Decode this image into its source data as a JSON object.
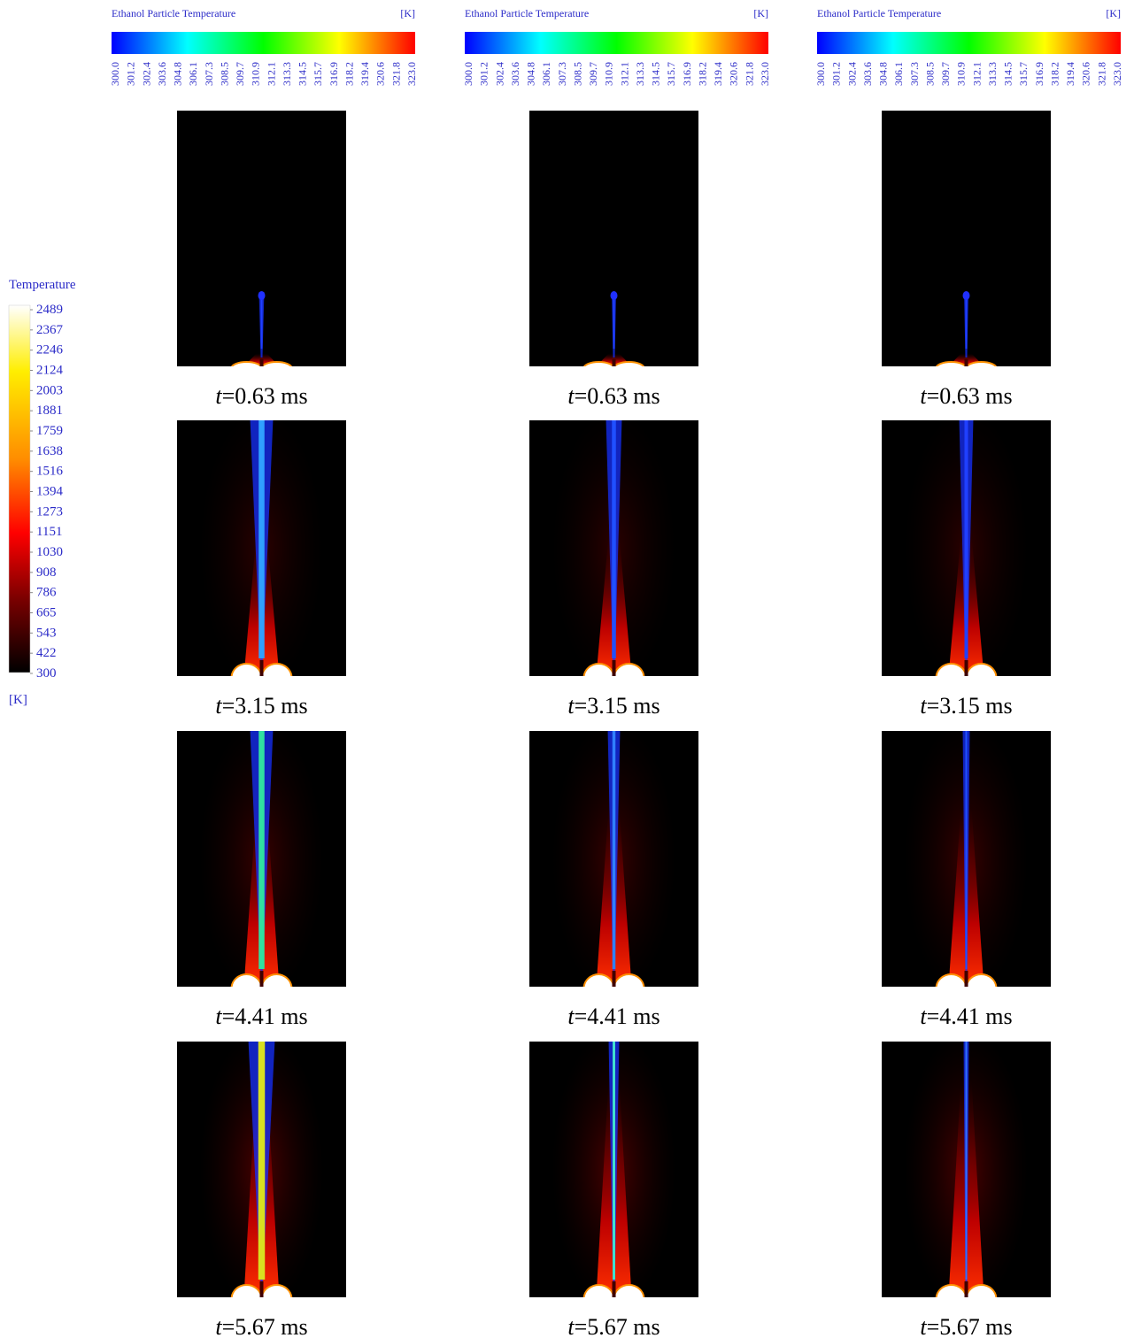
{
  "particle_colorbars": [
    {
      "title": "Ethanol Particle Temperature",
      "unit": "[K]",
      "ticks": [
        "300.0",
        "301.2",
        "302.4",
        "303.6",
        "304.8",
        "306.1",
        "307.3",
        "308.5",
        "309.7",
        "310.9",
        "312.1",
        "313.3",
        "314.5",
        "315.7",
        "316.9",
        "318.2",
        "319.4",
        "320.6",
        "321.8",
        "323.0"
      ]
    },
    {
      "title": "Ethanol Particle Temperature",
      "unit": "[K]",
      "ticks": [
        "300.0",
        "301.2",
        "302.4",
        "303.6",
        "304.8",
        "306.1",
        "307.3",
        "308.5",
        "309.7",
        "310.9",
        "312.1",
        "313.3",
        "314.5",
        "315.7",
        "316.9",
        "318.2",
        "319.4",
        "320.6",
        "321.8",
        "323.0"
      ]
    },
    {
      "title": "Ethanol Particle Temperature",
      "unit": "[K]",
      "ticks": [
        "300.0",
        "301.2",
        "302.4",
        "303.6",
        "304.8",
        "306.1",
        "307.3",
        "308.5",
        "309.7",
        "310.9",
        "312.1",
        "313.3",
        "314.5",
        "315.7",
        "316.9",
        "318.2",
        "319.4",
        "320.6",
        "321.8",
        "323.0"
      ]
    }
  ],
  "gas_colorbar": {
    "title": "Temperature",
    "unit": "[K]",
    "ticks": [
      "2489",
      "2367",
      "2246",
      "2124",
      "2003",
      "1881",
      "1759",
      "1638",
      "1516",
      "1394",
      "1273",
      "1151",
      "1030",
      "908",
      "786",
      "665",
      "543",
      "422",
      "300"
    ]
  },
  "panels": [
    [
      {
        "var": "t",
        "text": "=0.63 ms"
      },
      {
        "var": "t",
        "text": "=0.63 ms"
      },
      {
        "var": "t",
        "text": "=0.63 ms"
      }
    ],
    [
      {
        "var": "t",
        "text": "=3.15 ms"
      },
      {
        "var": "t",
        "text": "=3.15 ms"
      },
      {
        "var": "t",
        "text": "=3.15 ms"
      }
    ],
    [
      {
        "var": "t",
        "text": "=4.41 ms"
      },
      {
        "var": "t",
        "text": "=4.41 ms"
      },
      {
        "var": "t",
        "text": "=4.41 ms"
      }
    ],
    [
      {
        "var": "t",
        "text": "=5.67 ms"
      },
      {
        "var": "t",
        "text": "=5.67 ms"
      },
      {
        "var": "t",
        "text": "=5.67 ms"
      }
    ]
  ]
}
